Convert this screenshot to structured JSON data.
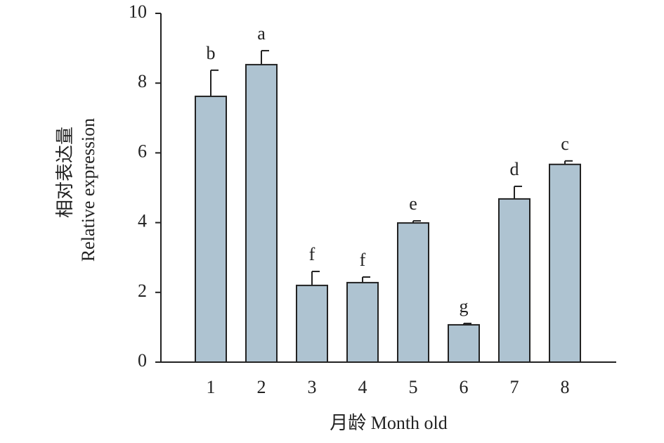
{
  "chart_data": {
    "type": "bar",
    "y_label": [
      "相对表达量",
      "Relative expression"
    ],
    "x_label": "月龄 Month old",
    "categories": [
      "1",
      "2",
      "3",
      "4",
      "5",
      "6",
      "7",
      "8"
    ],
    "values": [
      7.62,
      8.53,
      2.2,
      2.28,
      3.99,
      1.07,
      4.68,
      5.67
    ],
    "errors": [
      0.75,
      0.4,
      0.4,
      0.16,
      0.06,
      0.04,
      0.36,
      0.1
    ],
    "letters": [
      "b",
      "a",
      "f",
      "f",
      "e",
      "g",
      "d",
      "c"
    ],
    "color": "#aec3d1",
    "ylim": [
      0,
      10
    ],
    "yticks": [
      0,
      2,
      4,
      6,
      8,
      10
    ],
    "grid": false
  }
}
